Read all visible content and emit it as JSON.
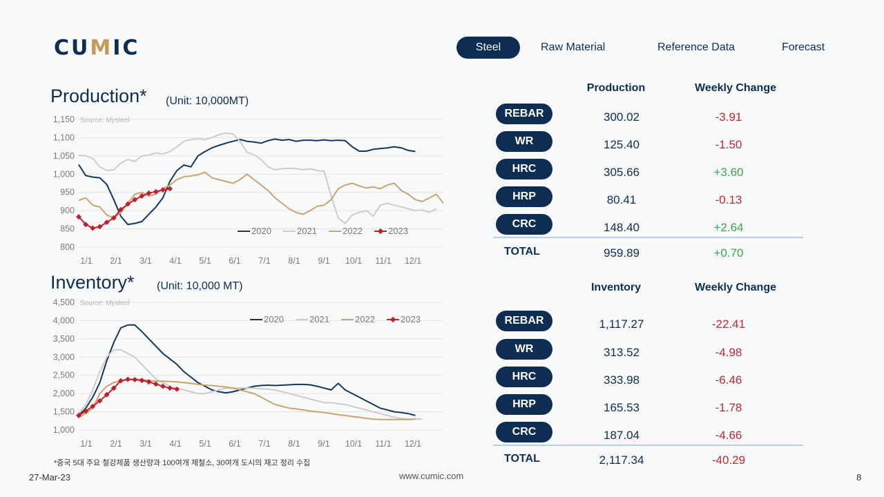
{
  "logo": {
    "pre": "CU",
    "mid": "M",
    "post": "IC"
  },
  "nav": {
    "steel": "Steel",
    "raw": "Raw Material",
    "ref": "Reference Data",
    "forecast": "Forecast"
  },
  "production": {
    "title": "Production*",
    "unit": "(Unit: 10,000MT)",
    "source": "Source: Mysteel"
  },
  "inventory": {
    "title": "Inventory*",
    "unit": "(Unit: 10,000 MT)",
    "source": "Source: Mysteel"
  },
  "prod_table": {
    "h1": "Production",
    "h2": "Weekly Change",
    "rows": [
      {
        "name": "REBAR",
        "value": "300.02",
        "change": "-3.91"
      },
      {
        "name": "WR",
        "value": "125.40",
        "change": "-1.50"
      },
      {
        "name": "HRC",
        "value": "305.66",
        "change": "+3.60"
      },
      {
        "name": "HRP",
        "value": "80.41",
        "change": "-0.13"
      },
      {
        "name": "CRC",
        "value": "148.40",
        "change": "+2.64"
      }
    ],
    "total": {
      "name": "TOTAL",
      "value": "959.89",
      "change": "+0.70"
    }
  },
  "inv_table": {
    "h1": "Inventory",
    "h2": "Weekly Change",
    "rows": [
      {
        "name": "REBAR",
        "value": "1,117.27",
        "change": "-22.41"
      },
      {
        "name": "WR",
        "value": "313.52",
        "change": "-4.98"
      },
      {
        "name": "HRC",
        "value": "333.98",
        "change": "-6.46"
      },
      {
        "name": "HRP",
        "value": "165.53",
        "change": "-1.78"
      },
      {
        "name": "CRC",
        "value": "187.04",
        "change": "-4.66"
      }
    ],
    "total": {
      "name": "TOTAL",
      "value": "2,117.34",
      "change": "-40.29"
    }
  },
  "footnote": "*중국 5대 주요 철강제품 생산량과 100여개 제철소, 30여개 도시의 재고 정리 수집",
  "date": "27-Mar-23",
  "url": "www.cumic.com",
  "page": "8",
  "colors": {
    "2020": "#14365e",
    "2021": "#cccccc",
    "2022": "#c9a46e",
    "2023": "#c0202a"
  },
  "chart_data": [
    {
      "type": "line",
      "title": "Production*",
      "x_ticks": [
        "1/1",
        "2/1",
        "3/1",
        "4/1",
        "5/1",
        "6/1",
        "7/1",
        "8/1",
        "9/1",
        "10/1",
        "11/1",
        "12/1"
      ],
      "ylim": [
        800,
        1150
      ],
      "y_ticks": [
        "800",
        "850",
        "900",
        "950",
        "1,000",
        "1,050",
        "1,100",
        "1,150"
      ],
      "legend": "bottom-right",
      "series": [
        {
          "name": "2020",
          "values": [
            1026,
            996,
            992,
            990,
            972,
            930,
            885,
            862,
            865,
            870,
            890,
            910,
            935,
            980,
            1010,
            1025,
            1020,
            1050,
            1062,
            1072,
            1079,
            1085,
            1090,
            1095,
            1090,
            1088,
            1085,
            1092,
            1096,
            1093,
            1095,
            1090,
            1093,
            1093,
            1092,
            1094,
            1092,
            1093,
            1092,
            1075,
            1063,
            1063,
            1068,
            1070,
            1072,
            1075,
            1072,
            1065,
            1062
          ]
        },
        {
          "name": "2021",
          "values": [
            1052,
            1050,
            1043,
            1020,
            1010,
            1012,
            1030,
            1040,
            1035,
            1050,
            1052,
            1058,
            1055,
            1062,
            1075,
            1090,
            1095,
            1097,
            1095,
            1100,
            1108,
            1113,
            1110,
            1090,
            1060,
            1053,
            1040,
            1020,
            1012,
            1015,
            1016,
            1015,
            1012,
            1015,
            1010,
            1008,
            940,
            880,
            865,
            888,
            895,
            900,
            885,
            915,
            920,
            915,
            910,
            905,
            900,
            902,
            895,
            905
          ]
        },
        {
          "name": "2022",
          "values": [
            928,
            935,
            915,
            910,
            888,
            880,
            895,
            920,
            945,
            950,
            940,
            945,
            960,
            970,
            985,
            993,
            995,
            998,
            1005,
            990,
            985,
            980,
            975,
            985,
            1000,
            985,
            970,
            955,
            935,
            920,
            905,
            895,
            890,
            900,
            912,
            915,
            930,
            960,
            970,
            975,
            968,
            962,
            965,
            960,
            970,
            975,
            955,
            945,
            930,
            925,
            935,
            945,
            920
          ]
        },
        {
          "name": "2023",
          "values": [
            883,
            862,
            852,
            856,
            868,
            880,
            903,
            918,
            930,
            940,
            948,
            952,
            957,
            960
          ]
        }
      ]
    },
    {
      "type": "line",
      "title": "Inventory*",
      "x_ticks": [
        "1/1",
        "2/1",
        "3/1",
        "4/1",
        "5/1",
        "6/1",
        "7/1",
        "8/1",
        "9/1",
        "10/1",
        "11/1",
        "12/1"
      ],
      "ylim": [
        1000,
        4500
      ],
      "y_ticks": [
        "1,000",
        "1,500",
        "2,000",
        "2,500",
        "3,000",
        "3,500",
        "4,000",
        "4,500"
      ],
      "legend": "top-right",
      "series": [
        {
          "name": "2020",
          "values": [
            1400,
            1600,
            1900,
            2300,
            2900,
            3400,
            3800,
            3880,
            3880,
            3700,
            3500,
            3300,
            3100,
            2950,
            2800,
            2600,
            2450,
            2300,
            2200,
            2100,
            2050,
            2020,
            2050,
            2100,
            2150,
            2200,
            2220,
            2230,
            2220,
            2230,
            2240,
            2250,
            2250,
            2240,
            2200,
            2150,
            2100,
            2280,
            2100,
            2000,
            1900,
            1800,
            1700,
            1600,
            1550,
            1500,
            1480,
            1450,
            1400
          ]
        },
        {
          "name": "2021",
          "values": [
            1450,
            1700,
            2100,
            2600,
            3000,
            3200,
            3200,
            3100,
            3000,
            2800,
            2600,
            2400,
            2300,
            2200,
            2150,
            2100,
            2050,
            2000,
            2000,
            2050,
            2100,
            2150,
            2150,
            2150,
            2150,
            2150,
            2130,
            2120,
            2100,
            2050,
            2000,
            1950,
            1900,
            1850,
            1800,
            1750,
            1750,
            1720,
            1700,
            1650,
            1600,
            1550,
            1500,
            1450,
            1400,
            1350,
            1320,
            1300,
            1300,
            1300
          ]
        },
        {
          "name": "2022",
          "values": [
            1350,
            1450,
            1600,
            2000,
            2200,
            2300,
            2350,
            2380,
            2400,
            2380,
            2360,
            2340,
            2340,
            2330,
            2320,
            2300,
            2280,
            2250,
            2230,
            2220,
            2200,
            2180,
            2150,
            2100,
            2050,
            2000,
            1900,
            1800,
            1700,
            1650,
            1600,
            1580,
            1550,
            1520,
            1500,
            1480,
            1450,
            1420,
            1400,
            1370,
            1350,
            1320,
            1300,
            1290,
            1290,
            1290,
            1290,
            1290,
            1300
          ]
        },
        {
          "name": "2023",
          "values": [
            1400,
            1520,
            1650,
            1800,
            1970,
            2150,
            2350,
            2390,
            2380,
            2360,
            2320,
            2260,
            2200,
            2150,
            2120
          ]
        }
      ]
    }
  ]
}
